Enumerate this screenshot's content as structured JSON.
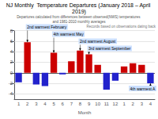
{
  "chart_data": {
    "type": "bar",
    "title": "NJ Monthly  Temperature Departures (January 2018 – April 2019)",
    "subtitle": "Departures calculated from differences between observed(NWS) temperatures and 1981-2010 monthly averages",
    "xlabel": "Month",
    "categories": [
      "1",
      "2",
      "3",
      "4",
      "5",
      "6",
      "7",
      "8",
      "9",
      "10",
      "11",
      "12",
      "1",
      "2",
      "3",
      "4"
    ],
    "values": [
      -1.8,
      5.8,
      -2.2,
      -2.5,
      3.8,
      -0.3,
      2.2,
      4.2,
      3.5,
      1.5,
      -3.2,
      -1.5,
      1.2,
      1.8,
      1.5,
      -2.0
    ],
    "colors": [
      "#2222cc",
      "#cc0000",
      "#2222cc",
      "#2222cc",
      "#cc0000",
      "#2222cc",
      "#cc0000",
      "#cc0000",
      "#cc0000",
      "#cc0000",
      "#2222cc",
      "#2222cc",
      "#cc0000",
      "#cc0000",
      "#cc0000",
      "#2222cc"
    ],
    "ylim": [
      -5,
      8
    ],
    "yticks": [
      -4,
      -2,
      0,
      2,
      4,
      6,
      8
    ],
    "grid": true,
    "annotations": [
      {
        "text": "2nd warmest February",
        "index": 1
      },
      {
        "text": "4th warmest May",
        "index": 4
      },
      {
        "text": "2nd warmest August",
        "index": 7
      },
      {
        "text": "3rd warmest September",
        "index": 8
      },
      {
        "text": "4th warmest A",
        "index": 15
      },
      {
        "text": "Records based on observations dating back"
      }
    ]
  }
}
